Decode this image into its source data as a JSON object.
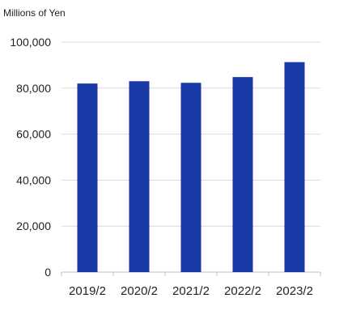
{
  "chart_data": {
    "type": "bar",
    "unit_label": "Millions of Yen",
    "categories": [
      "2019/2",
      "2020/2",
      "2021/2",
      "2022/2",
      "2023/2"
    ],
    "values": [
      82000,
      83000,
      82300,
      84800,
      91300
    ],
    "ylim": [
      0,
      100000
    ],
    "yticks": [
      0,
      20000,
      40000,
      60000,
      80000,
      100000
    ],
    "ytick_labels": [
      "0",
      "20,000",
      "40,000",
      "60,000",
      "80,000",
      "100,000"
    ],
    "grid": true,
    "legend": "none",
    "colors": {
      "bar": "#1a3aa8",
      "grid": "#d9d9d9",
      "axis": "#bfbfbf",
      "text": "#222222"
    }
  }
}
